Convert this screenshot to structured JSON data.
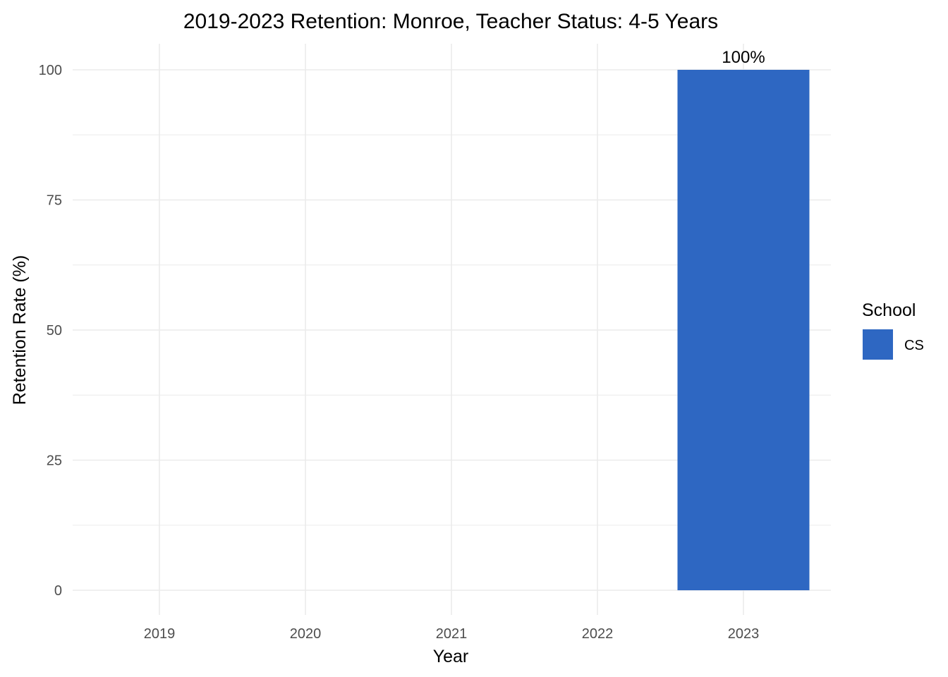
{
  "chart_data": {
    "type": "bar",
    "title": "2019-2023 Retention: Monroe, Teacher Status: 4-5 Years",
    "xlabel": "Year",
    "ylabel": "Retention Rate (%)",
    "categories": [
      "2019",
      "2020",
      "2021",
      "2022",
      "2023"
    ],
    "series": [
      {
        "name": "CS",
        "values": [
          null,
          null,
          null,
          null,
          100
        ],
        "data_labels": [
          null,
          null,
          null,
          null,
          "100%"
        ],
        "color": "#2e67c2"
      }
    ],
    "ylim": [
      0,
      100
    ],
    "yticks": [
      0,
      25,
      50,
      75,
      100
    ],
    "ytick_labels": [
      "0",
      "25",
      "50",
      "75",
      "100"
    ],
    "grid": true,
    "legend": {
      "title": "School",
      "position": "right",
      "entries": [
        "CS"
      ]
    }
  }
}
